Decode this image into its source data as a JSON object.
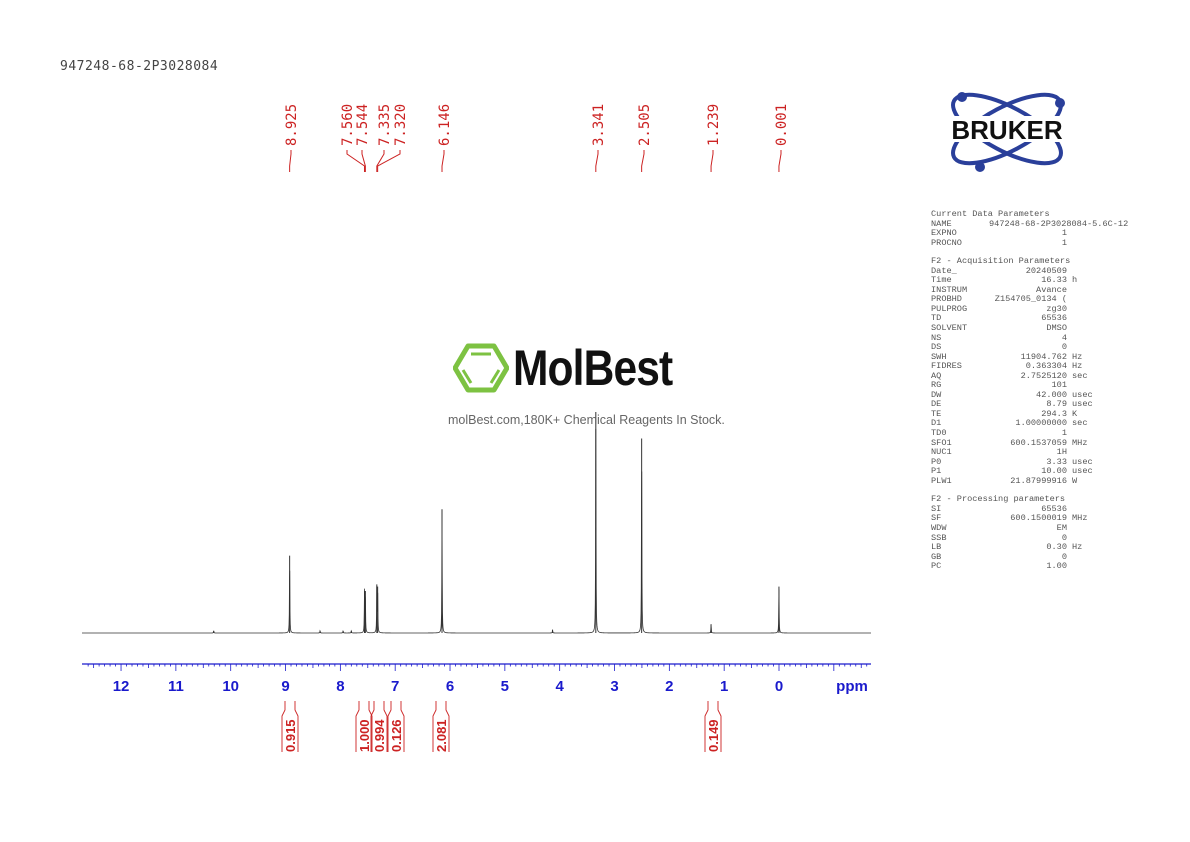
{
  "sample_id": "947248-68-2P3028084",
  "logo": {
    "brand": "BRUKER"
  },
  "watermark": {
    "brand": "MolBest",
    "tagline": "molBest.com,180K+ Chemical Reagents In Stock.",
    "color": "#7dc242"
  },
  "parameters": {
    "current": {
      "title": "Current Data Parameters",
      "rows": [
        {
          "k": "NAME",
          "v": "947248-68-2P3028084-5.6C-12",
          "u": ""
        },
        {
          "k": "EXPNO",
          "v": "1",
          "u": ""
        },
        {
          "k": "PROCNO",
          "v": "1",
          "u": ""
        }
      ]
    },
    "acquisition": {
      "title": "F2 - Acquisition Parameters",
      "rows": [
        {
          "k": "Date_",
          "v": "20240509",
          "u": ""
        },
        {
          "k": "Time",
          "v": "16.33",
          "u": "h"
        },
        {
          "k": "INSTRUM",
          "v": "Avance",
          "u": ""
        },
        {
          "k": "PROBHD",
          "v": "Z154705_0134 (",
          "u": ""
        },
        {
          "k": "PULPROG",
          "v": "zg30",
          "u": ""
        },
        {
          "k": "TD",
          "v": "65536",
          "u": ""
        },
        {
          "k": "SOLVENT",
          "v": "DMSO",
          "u": ""
        },
        {
          "k": "NS",
          "v": "4",
          "u": ""
        },
        {
          "k": "DS",
          "v": "0",
          "u": ""
        },
        {
          "k": "SWH",
          "v": "11904.762",
          "u": "Hz"
        },
        {
          "k": "FIDRES",
          "v": "0.363304",
          "u": "Hz"
        },
        {
          "k": "AQ",
          "v": "2.7525120",
          "u": "sec"
        },
        {
          "k": "RG",
          "v": "101",
          "u": ""
        },
        {
          "k": "DW",
          "v": "42.000",
          "u": "usec"
        },
        {
          "k": "DE",
          "v": "8.79",
          "u": "usec"
        },
        {
          "k": "TE",
          "v": "294.3",
          "u": "K"
        },
        {
          "k": "D1",
          "v": "1.00000000",
          "u": "sec"
        },
        {
          "k": "TD0",
          "v": "1",
          "u": ""
        },
        {
          "k": "SFO1",
          "v": "600.1537059",
          "u": "MHz"
        },
        {
          "k": "NUC1",
          "v": "1H",
          "u": ""
        },
        {
          "k": "P0",
          "v": "3.33",
          "u": "usec"
        },
        {
          "k": "P1",
          "v": "10.00",
          "u": "usec"
        },
        {
          "k": "PLW1",
          "v": "21.87999916",
          "u": "W"
        }
      ]
    },
    "processing": {
      "title": "F2 - Processing parameters",
      "rows": [
        {
          "k": "SI",
          "v": "65536",
          "u": ""
        },
        {
          "k": "SF",
          "v": "600.1500019",
          "u": "MHz"
        },
        {
          "k": "WDW",
          "v": "EM",
          "u": ""
        },
        {
          "k": "SSB",
          "v": "0",
          "u": ""
        },
        {
          "k": "LB",
          "v": "0.30",
          "u": "Hz"
        },
        {
          "k": "GB",
          "v": "0",
          "u": ""
        },
        {
          "k": "PC",
          "v": "1.00",
          "u": ""
        }
      ]
    }
  },
  "chart_data": {
    "type": "line",
    "xlabel": "ppm",
    "xlim": [
      12.7,
      -1.68
    ],
    "x_reversed": true,
    "x_ticks": [
      "12",
      "11",
      "10",
      "9",
      "8",
      "7",
      "6",
      "5",
      "4",
      "3",
      "2",
      "1",
      "0"
    ],
    "grid": false,
    "colors": {
      "spectrum": "#333333",
      "axis": "#1a1acc",
      "annotations": "#cc2222"
    },
    "peaks": [
      {
        "ppm": 10.31,
        "intensity": 0.01
      },
      {
        "ppm": 8.925,
        "intensity": 0.35
      },
      {
        "ppm": 8.37,
        "intensity": 0.01
      },
      {
        "ppm": 7.95,
        "intensity": 0.01
      },
      {
        "ppm": 7.8,
        "intensity": 0.01
      },
      {
        "ppm": 7.56,
        "intensity": 0.19
      },
      {
        "ppm": 7.544,
        "intensity": 0.19
      },
      {
        "ppm": 7.335,
        "intensity": 0.22
      },
      {
        "ppm": 7.32,
        "intensity": 0.21
      },
      {
        "ppm": 6.146,
        "intensity": 0.56
      },
      {
        "ppm": 4.13,
        "intensity": 0.015
      },
      {
        "ppm": 3.341,
        "intensity": 1.0
      },
      {
        "ppm": 2.505,
        "intensity": 0.88
      },
      {
        "ppm": 1.239,
        "intensity": 0.04
      },
      {
        "ppm": 0.001,
        "intensity": 0.21
      }
    ],
    "peak_labels": [
      "8.925",
      "7.560",
      "7.544",
      "7.335",
      "7.320",
      "6.146",
      "3.341",
      "2.505",
      "1.239",
      "0.001"
    ],
    "integrals": [
      {
        "ppm": 8.925,
        "value": "0.915"
      },
      {
        "ppm": 7.56,
        "value": "1.000"
      },
      {
        "ppm": 7.33,
        "value": "0.994"
      },
      {
        "ppm": 7.05,
        "value": "0.126"
      },
      {
        "ppm": 6.146,
        "value": "2.081"
      },
      {
        "ppm": 1.239,
        "value": "0.149"
      }
    ]
  }
}
